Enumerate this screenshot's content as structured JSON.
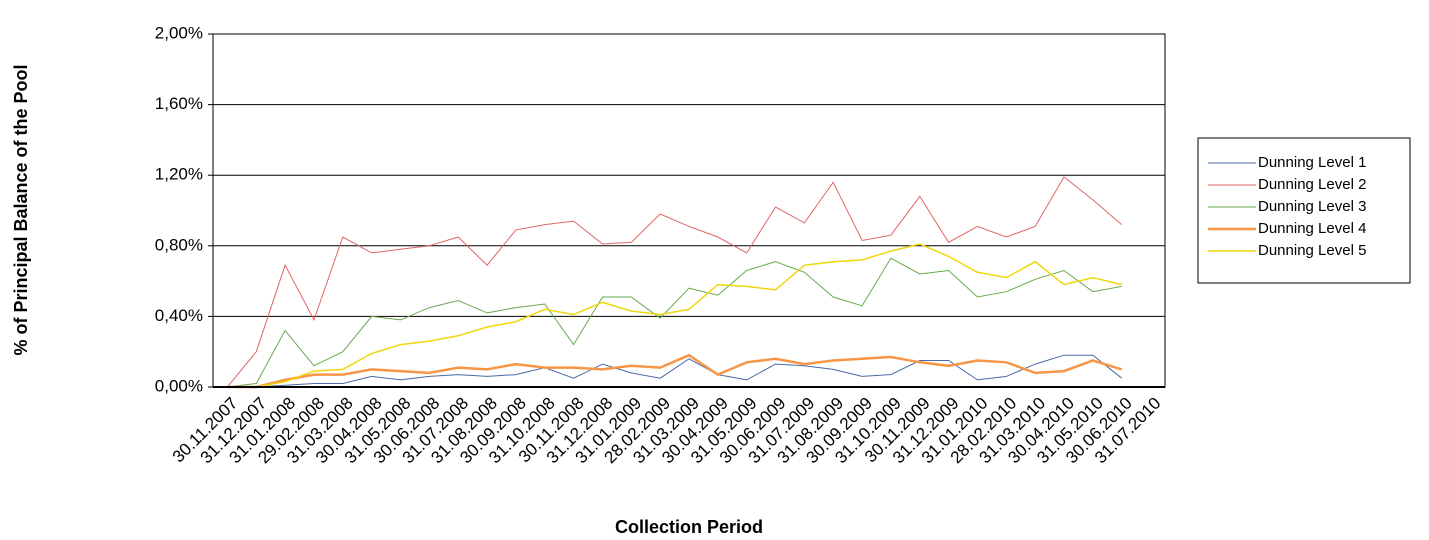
{
  "chart_data": {
    "type": "line",
    "x_label": "Collection Period",
    "y_label": "% of Principal Balance of the Pool",
    "categories": [
      "30.11.2007",
      "31.12.2007",
      "31.01.2008",
      "29.02.2008",
      "31.03.2008",
      "30.04.2008",
      "31.05.2008",
      "30.06.2008",
      "31.07.2008",
      "31.08.2008",
      "30.09.2008",
      "31.10.2008",
      "30.11.2008",
      "31.12.2008",
      "31.01.2009",
      "28.02.2009",
      "31.03.2009",
      "30.04.2009",
      "31.05.2009",
      "30.06.2009",
      "31.07.2009",
      "31.08.2009",
      "30.09.2009",
      "31.10.2009",
      "30.11.2009",
      "31.12.2009",
      "31.01.2010",
      "28.02.2010",
      "31.03.2010",
      "30.04.2010",
      "31.05.2010",
      "30.06.2010",
      "31.07.2010"
    ],
    "series": [
      {
        "name": "Dunning Level 1",
        "color": "#4a6aa5",
        "width": 1,
        "values": [
          0.0,
          0.0,
          0.01,
          0.02,
          0.02,
          0.06,
          0.04,
          0.06,
          0.07,
          0.06,
          0.07,
          0.11,
          0.05,
          0.13,
          0.08,
          0.05,
          0.16,
          0.07,
          0.04,
          0.13,
          0.12,
          0.1,
          0.06,
          0.07,
          0.15,
          0.15,
          0.04,
          0.06,
          0.13,
          0.18,
          0.18,
          0.05,
          null
        ]
      },
      {
        "name": "Dunning Level 2",
        "color": "#e06666",
        "width": 1,
        "values": [
          0.0,
          0.2,
          0.69,
          0.38,
          0.85,
          0.76,
          0.78,
          0.8,
          0.85,
          0.69,
          0.89,
          0.92,
          0.94,
          0.81,
          0.82,
          0.98,
          0.91,
          0.85,
          0.76,
          1.02,
          0.93,
          1.16,
          0.83,
          0.86,
          1.08,
          0.82,
          0.91,
          0.85,
          0.91,
          1.19,
          1.06,
          0.92,
          null
        ]
      },
      {
        "name": "Dunning Level 3",
        "color": "#6aa84f",
        "width": 1,
        "values": [
          0.0,
          0.02,
          0.32,
          0.12,
          0.2,
          0.4,
          0.38,
          0.45,
          0.49,
          0.42,
          0.45,
          0.47,
          0.24,
          0.51,
          0.51,
          0.39,
          0.56,
          0.52,
          0.66,
          0.71,
          0.65,
          0.51,
          0.46,
          0.73,
          0.64,
          0.66,
          0.51,
          0.54,
          0.61,
          0.66,
          0.54,
          0.57,
          null
        ]
      },
      {
        "name": "Dunning Level 4",
        "color": "#f79646",
        "width": 2.5,
        "values": [
          0.0,
          0.0,
          0.04,
          0.07,
          0.07,
          0.1,
          0.09,
          0.08,
          0.11,
          0.1,
          0.13,
          0.11,
          0.11,
          0.1,
          0.12,
          0.11,
          0.18,
          0.07,
          0.14,
          0.16,
          0.13,
          0.15,
          0.16,
          0.17,
          0.14,
          0.12,
          0.15,
          0.14,
          0.08,
          0.09,
          0.15,
          0.1,
          null
        ]
      },
      {
        "name": "Dunning Level 5",
        "color": "#f1d60a",
        "width": 1.5,
        "values": [
          0.0,
          0.0,
          0.03,
          0.09,
          0.1,
          0.19,
          0.24,
          0.26,
          0.29,
          0.34,
          0.37,
          0.44,
          0.41,
          0.48,
          0.43,
          0.41,
          0.44,
          0.58,
          0.57,
          0.55,
          0.69,
          0.71,
          0.72,
          0.77,
          0.81,
          0.74,
          0.65,
          0.62,
          0.71,
          0.58,
          0.62,
          0.58,
          null
        ]
      }
    ],
    "ylim": [
      0,
      2
    ],
    "yticks": [
      {
        "value": 0,
        "label": "0,00%"
      },
      {
        "value": 0.4,
        "label": "0,40%"
      },
      {
        "value": 0.8,
        "label": "0,80%"
      },
      {
        "value": 1.2,
        "label": "1,20%"
      },
      {
        "value": 1.6,
        "label": "1,60%"
      },
      {
        "value": 2,
        "label": "2,00%"
      }
    ],
    "grid": true,
    "legend": "right"
  }
}
